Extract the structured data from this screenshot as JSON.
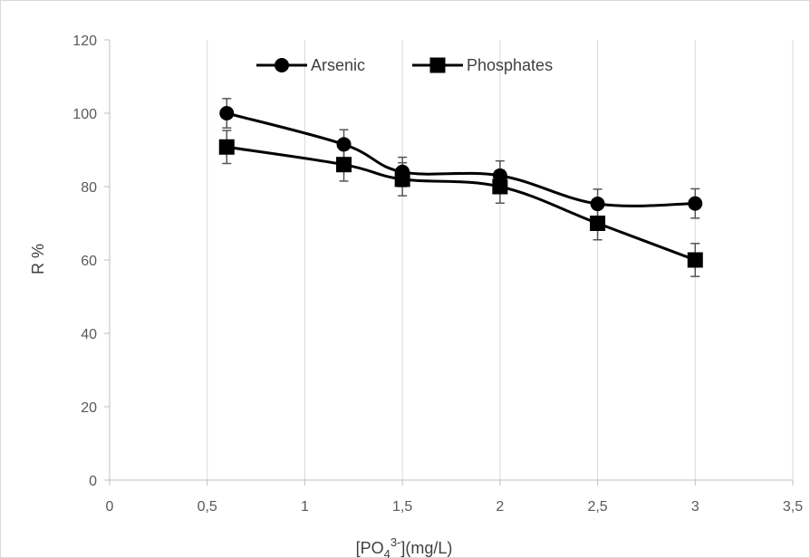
{
  "chart_data": {
    "type": "line",
    "title": "",
    "xlabel": {
      "main": "[PO",
      "sub": "4",
      "sup": "3-",
      "tail": "](mg/L)"
    },
    "ylabel": "R %",
    "xlim": [
      0,
      3.5
    ],
    "ylim": [
      0,
      120
    ],
    "x_ticks": [
      "0",
      "0,5",
      "1",
      "1,5",
      "2",
      "2,5",
      "3",
      "3,5"
    ],
    "x_tick_values": [
      0,
      0.5,
      1,
      1.5,
      2,
      2.5,
      3,
      3.5
    ],
    "y_ticks": [
      "0",
      "20",
      "40",
      "60",
      "80",
      "100",
      "120"
    ],
    "y_tick_values": [
      0,
      20,
      40,
      60,
      80,
      100,
      120
    ],
    "grid": "vertical",
    "legend_position": "top",
    "x": [
      0.6,
      1.2,
      1.5,
      2,
      2.5,
      3
    ],
    "series": [
      {
        "name": "Arsenic",
        "marker": "circle",
        "values": [
          100,
          91.5,
          84,
          83,
          75.3,
          75.4
        ],
        "error": [
          4,
          4,
          4,
          4,
          4,
          4
        ]
      },
      {
        "name": "Phosphates",
        "marker": "square",
        "values": [
          90.8,
          86,
          82,
          80,
          70,
          60
        ],
        "error": [
          4.5,
          4.5,
          4.5,
          4.5,
          4.5,
          4.5
        ]
      }
    ],
    "colors": {
      "line": "#000000",
      "error": "#555555",
      "grid": "#d9d9d9",
      "axis": "#bfbfbf"
    }
  }
}
